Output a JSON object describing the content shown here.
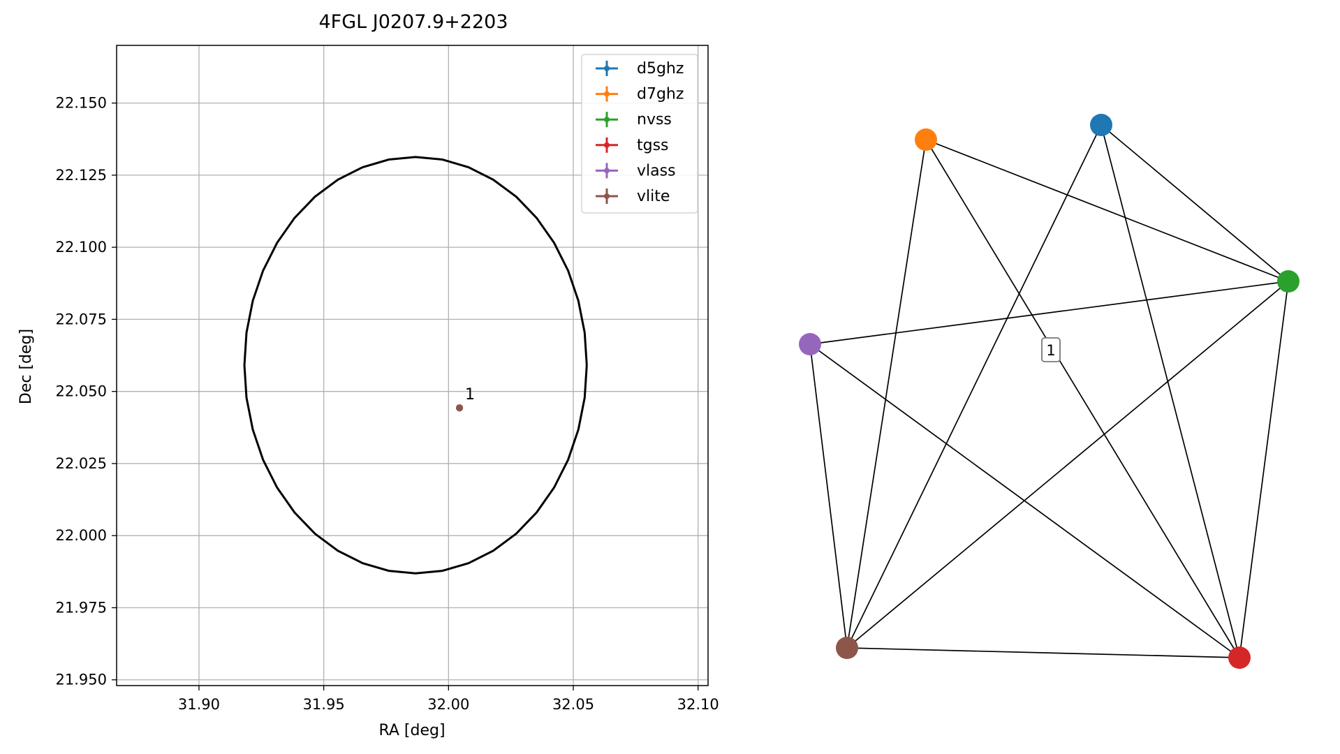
{
  "chart_data": [
    {
      "type": "scatter",
      "title": "4FGL J0207.9+2203",
      "xlabel": "RA [deg]",
      "ylabel": "Dec [deg]",
      "xlim": [
        31.867,
        32.104
      ],
      "ylim": [
        21.948,
        22.17
      ],
      "xticks": [
        31.9,
        31.95,
        32.0,
        32.05,
        32.1
      ],
      "xtick_labels": [
        "31.90",
        "31.95",
        "32.00",
        "32.05",
        "32.10"
      ],
      "yticks": [
        21.95,
        21.975,
        22.0,
        22.025,
        22.05,
        22.075,
        22.1,
        22.125,
        22.15
      ],
      "ytick_labels": [
        "21.950",
        "21.975",
        "22.000",
        "22.025",
        "22.050",
        "22.075",
        "22.100",
        "22.125",
        "22.150"
      ],
      "grid": true,
      "legend_position": "top-right",
      "series": [
        {
          "name": "d5ghz",
          "color": "#1f77b4",
          "x": [
            32.0044
          ],
          "y": [
            22.0443
          ]
        },
        {
          "name": "d7ghz",
          "color": "#ff7f0e",
          "x": [
            32.0044
          ],
          "y": [
            22.0443
          ]
        },
        {
          "name": "nvss",
          "color": "#2ca02c",
          "x": [
            32.0044
          ],
          "y": [
            22.0443
          ]
        },
        {
          "name": "tgss",
          "color": "#d62728",
          "x": [
            32.0044
          ],
          "y": [
            22.0443
          ]
        },
        {
          "name": "vlass",
          "color": "#9467bd",
          "x": [
            32.0044
          ],
          "y": [
            22.0443
          ]
        },
        {
          "name": "vlite",
          "color": "#8c564b",
          "x": [
            32.0044
          ],
          "y": [
            22.0443
          ]
        }
      ],
      "ellipse": {
        "center_ra": 31.9868,
        "center_dec": 22.0591,
        "semi_ra": 0.0686,
        "semi_dec": 0.0722,
        "color": "#000000"
      },
      "annotations": [
        {
          "text": "1",
          "x": 32.0044,
          "y": 22.0443
        }
      ]
    },
    {
      "type": "network",
      "nodes": [
        {
          "id": "d5ghz",
          "color": "#1f77b4"
        },
        {
          "id": "d7ghz",
          "color": "#ff7f0e"
        },
        {
          "id": "nvss",
          "color": "#2ca02c"
        },
        {
          "id": "tgss",
          "color": "#d62728"
        },
        {
          "id": "vlass",
          "color": "#9467bd"
        },
        {
          "id": "vlite",
          "color": "#8c564b"
        }
      ],
      "edges": [
        [
          "d5ghz",
          "nvss"
        ],
        [
          "d5ghz",
          "tgss"
        ],
        [
          "d5ghz",
          "vlite"
        ],
        [
          "d7ghz",
          "nvss"
        ],
        [
          "d7ghz",
          "tgss"
        ],
        [
          "d7ghz",
          "vlite"
        ],
        [
          "nvss",
          "vlass"
        ],
        [
          "nvss",
          "tgss"
        ],
        [
          "nvss",
          "vlite"
        ],
        [
          "vlass",
          "vlite"
        ],
        [
          "vlass",
          "tgss"
        ],
        [
          "vlite",
          "tgss"
        ]
      ],
      "cluster_label": "1"
    }
  ]
}
